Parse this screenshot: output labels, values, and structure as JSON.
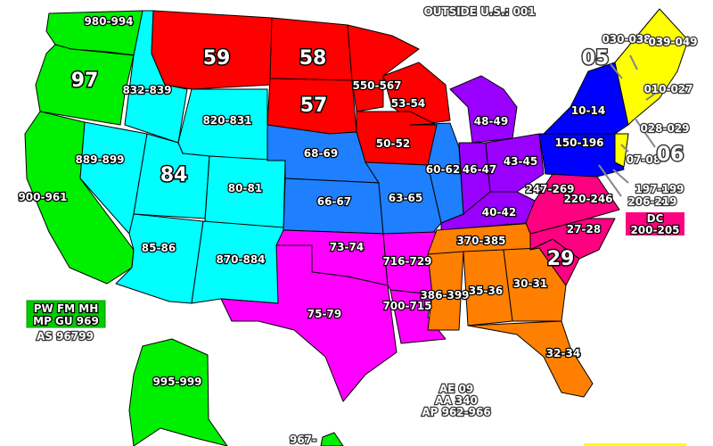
{
  "header": {
    "outside_us": "OUTSIDE U.S.: 001"
  },
  "colors": {
    "green": "#00ee00",
    "cyan": "#00ffff",
    "red": "#ff0000",
    "blue_mid": "#1e7fff",
    "purple": "#9900ff",
    "magenta": "#ff00ff",
    "orange": "#ff8000",
    "pink": "#ff0080",
    "blue": "#0000ff",
    "yellow": "#ffff00"
  },
  "zones": {
    "wa": "980-994",
    "or": "97",
    "ca": "900-961",
    "id": "832-839",
    "nv": "889-899",
    "ut": "84",
    "wy": "820-831",
    "co": "80-81",
    "az": "85-86",
    "nm": "870-884",
    "mt": "59",
    "nd": "58",
    "sd": "57",
    "mn": "550-567",
    "wi": "53-54",
    "ia": "50-52",
    "ne": "68-69",
    "ks": "66-67",
    "mo": "63-65",
    "il": "60-62",
    "mi": "48-49",
    "in": "46-47",
    "oh": "43-45",
    "ky": "40-42",
    "ok": "73-74",
    "tx": "75-79",
    "ar": "716-729",
    "la": "700-715",
    "tn": "370-385",
    "ms": "386-399",
    "al": "35-36",
    "ga": "30-31",
    "fl": "32-34",
    "wv": "247-269",
    "va": "220-246",
    "nc": "27-28",
    "sc": "29",
    "de": "197-199",
    "md": "206-219",
    "dc_title": "DC",
    "dc": "200-205",
    "ny": "10-14",
    "pa": "150-196",
    "nj": "07-08",
    "vt": "05",
    "nh": "030-038",
    "me": "039-049",
    "ma": "010-027",
    "ri": "028-029",
    "ct": "06",
    "ak": "995-999",
    "hi": "967-"
  },
  "territories": {
    "line1": "PW FM MH",
    "line2": "MP GU 969",
    "as": "AS 96799"
  },
  "military": {
    "ae": "AE 09",
    "aa": "AA 340",
    "ap": "AP 962-966"
  }
}
